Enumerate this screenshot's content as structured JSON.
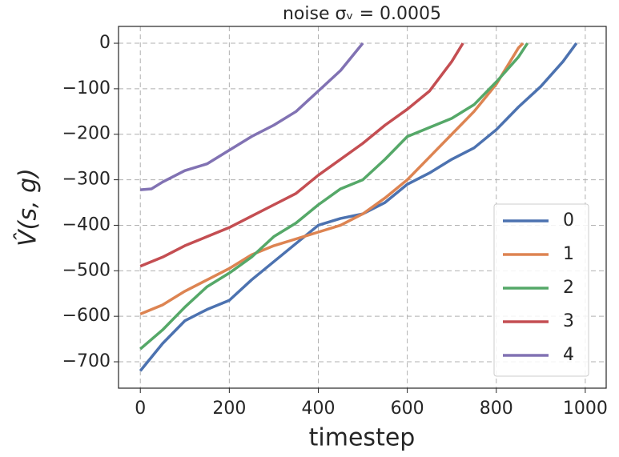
{
  "chart_data": {
    "type": "line",
    "title": "noise σᵥ = 0.0005",
    "x_label": "timestep",
    "y_label": "V̂(s, g)",
    "xlim": [
      -49,
      1047
    ],
    "xticks": [
      0,
      200,
      400,
      600,
      800,
      1000
    ],
    "ylim": [
      -758,
      37
    ],
    "yticks": [
      {
        "value": 0,
        "label": "0"
      },
      {
        "value": -100,
        "label": "−100"
      },
      {
        "value": -200,
        "label": "−200"
      },
      {
        "value": -300,
        "label": "−300"
      },
      {
        "value": -400,
        "label": "−400"
      },
      {
        "value": -500,
        "label": "−500"
      },
      {
        "value": -600,
        "label": "−600"
      },
      {
        "value": -700,
        "label": "−700"
      }
    ],
    "grid": true,
    "legend": "lower right",
    "series": [
      {
        "name": "0",
        "color": "#4c72b0",
        "x": [
          0,
          50,
          100,
          150,
          200,
          250,
          300,
          350,
          400,
          450,
          500,
          550,
          600,
          650,
          700,
          750,
          800,
          850,
          900,
          950,
          980
        ],
        "values": [
          -720,
          -660,
          -610,
          -585,
          -565,
          -520,
          -480,
          -440,
          -400,
          -385,
          -375,
          -350,
          -310,
          -285,
          -255,
          -230,
          -190,
          -140,
          -95,
          -40,
          0
        ]
      },
      {
        "name": "1",
        "color": "#dd8452",
        "x": [
          0,
          50,
          100,
          150,
          200,
          250,
          300,
          350,
          400,
          450,
          500,
          550,
          600,
          650,
          700,
          750,
          800,
          850,
          860
        ],
        "values": [
          -595,
          -575,
          -545,
          -520,
          -495,
          -465,
          -445,
          -430,
          -415,
          -400,
          -375,
          -340,
          -300,
          -250,
          -200,
          -150,
          -90,
          -10,
          0
        ]
      },
      {
        "name": "2",
        "color": "#55a868",
        "x": [
          0,
          50,
          100,
          150,
          200,
          250,
          300,
          350,
          400,
          450,
          500,
          550,
          600,
          650,
          700,
          750,
          800,
          850,
          870
        ],
        "values": [
          -672,
          -630,
          -580,
          -535,
          -505,
          -470,
          -425,
          -395,
          -355,
          -320,
          -300,
          -255,
          -205,
          -185,
          -165,
          -135,
          -85,
          -30,
          0
        ]
      },
      {
        "name": "3",
        "color": "#c44e52",
        "x": [
          0,
          50,
          100,
          150,
          200,
          250,
          300,
          350,
          400,
          450,
          500,
          550,
          600,
          650,
          700,
          725
        ],
        "values": [
          -490,
          -470,
          -445,
          -425,
          -405,
          -380,
          -355,
          -330,
          -290,
          -255,
          -220,
          -180,
          -145,
          -105,
          -40,
          0
        ]
      },
      {
        "name": "4",
        "color": "#8172b3",
        "x": [
          0,
          25,
          50,
          100,
          150,
          200,
          250,
          300,
          350,
          400,
          450,
          500
        ],
        "values": [
          -322,
          -320,
          -305,
          -280,
          -265,
          -235,
          -205,
          -180,
          -150,
          -105,
          -60,
          0
        ]
      }
    ]
  }
}
